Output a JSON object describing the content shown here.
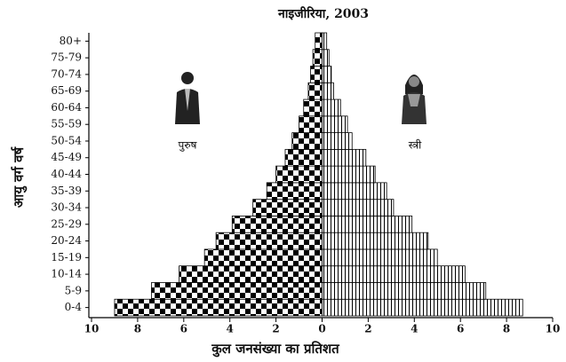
{
  "chart_data": {
    "type": "pyramid",
    "title": "नाइजीरिया, 2003",
    "xlabel": "कुल जनसंख्या का प्रतिशत",
    "ylabel": "आयु वर्ग वर्ष",
    "categories": [
      "0-4",
      "5-9",
      "10-14",
      "15-19",
      "20-24",
      "25-29",
      "30-34",
      "35-39",
      "40-44",
      "45-49",
      "50-54",
      "55-59",
      "60-64",
      "65-69",
      "70-74",
      "75-79",
      "80+"
    ],
    "series": [
      {
        "name": "पुरुष",
        "color": "#000000",
        "values": [
          9.0,
          7.4,
          6.2,
          5.1,
          4.6,
          3.9,
          3.0,
          2.4,
          2.0,
          1.6,
          1.3,
          1.0,
          0.8,
          0.6,
          0.5,
          0.4,
          0.3
        ]
      },
      {
        "name": "स्त्री",
        "color": "#000000",
        "values": [
          8.7,
          7.1,
          6.2,
          5.0,
          4.6,
          3.9,
          3.1,
          2.8,
          2.3,
          1.9,
          1.3,
          1.1,
          0.8,
          0.5,
          0.4,
          0.3,
          0.2
        ]
      }
    ],
    "xlim": [
      -10,
      10
    ],
    "xticks": [
      {
        "value": -10,
        "label": "10"
      },
      {
        "value": -8,
        "label": "8"
      },
      {
        "value": -6,
        "label": "6"
      },
      {
        "value": -4,
        "label": "4"
      },
      {
        "value": -2,
        "label": "2"
      },
      0,
      2,
      4,
      6,
      8,
      10
    ]
  }
}
